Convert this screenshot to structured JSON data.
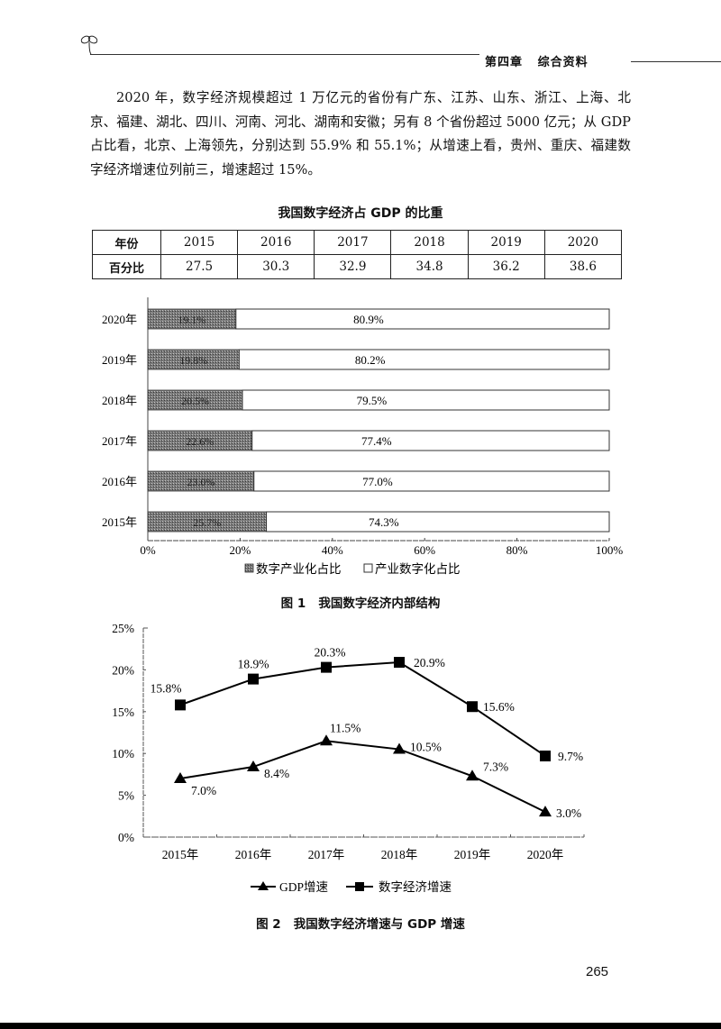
{
  "header": {
    "chapter": "第四章",
    "section": "综合资料",
    "title_full": "第四章   综合资料"
  },
  "paragraph": {
    "text": "2020 年，数字经济规模超过 1 万亿元的省份有广东、江苏、山东、浙江、上海、北京、福建、湖北、四川、河南、河北、湖南和安徽；另有 8 个省份超过 5000 亿元；从 GDP 占比看，北京、上海领先，分别达到 55.9% 和 55.1%；从增速上看，贵州、重庆、福建数字经济增速位列前三，增速超过 15%。"
  },
  "table": {
    "title": "我国数字经济占 GDP 的比重",
    "row_header_year": "年份",
    "row_header_pct": "百分比",
    "years": [
      "2015",
      "2016",
      "2017",
      "2018",
      "2019",
      "2020"
    ],
    "percentages": [
      "27.5",
      "30.3",
      "32.9",
      "34.8",
      "36.2",
      "38.6"
    ]
  },
  "figure1": {
    "caption": "图 1   我国数字经济内部结构",
    "legend": [
      "数字产业化占比",
      "产业数字化占比"
    ]
  },
  "figure2": {
    "caption": "图 2   我国数字经济增速与 GDP 增速",
    "legend": [
      "GDP增速",
      "数字经济增速"
    ]
  },
  "page_number": "265",
  "chart_data": [
    {
      "type": "bar",
      "orientation": "horizontal",
      "stacked": true,
      "title": "图 1 我国数字经济内部结构",
      "categories": [
        "2020年",
        "2019年",
        "2018年",
        "2017年",
        "2016年",
        "2015年"
      ],
      "series": [
        {
          "name": "数字产业化占比",
          "values": [
            19.1,
            19.8,
            20.5,
            22.6,
            23.0,
            25.7
          ],
          "labels": [
            "19.1%",
            "19.8%",
            "20.5%",
            "22.6%",
            "23.0%",
            "25.7%"
          ],
          "color": "#808080"
        },
        {
          "name": "产业数字化占比",
          "values": [
            80.9,
            80.2,
            79.5,
            77.4,
            77.0,
            74.3
          ],
          "labels": [
            "80.9%",
            "80.2%",
            "79.5%",
            "77.4%",
            "77.0%",
            "74.3%"
          ],
          "color": "#ffffff"
        }
      ],
      "xticks": [
        "0%",
        "20%",
        "40%",
        "60%",
        "80%",
        "100%"
      ],
      "xlim": [
        0,
        100
      ],
      "legend_position": "bottom",
      "grid": false
    },
    {
      "type": "line",
      "title": "图 2 我国数字经济增速与 GDP 增速",
      "categories": [
        "2015年",
        "2016年",
        "2017年",
        "2018年",
        "2019年",
        "2020年"
      ],
      "series": [
        {
          "name": "GDP增速",
          "marker": "triangle",
          "values": [
            7.0,
            8.4,
            11.5,
            10.5,
            7.3,
            3.0
          ],
          "labels": [
            "7.0%",
            "8.4%",
            "11.5%",
            "10.5%",
            "7.3%",
            "3.0%"
          ]
        },
        {
          "name": "数字经济增速",
          "marker": "square",
          "values": [
            15.8,
            18.9,
            20.3,
            20.9,
            15.6,
            9.7
          ],
          "labels": [
            "15.8%",
            "18.9%",
            "20.3%",
            "20.9%",
            "15.6%",
            "9.7%"
          ]
        }
      ],
      "yticks": [
        "0%",
        "5%",
        "10%",
        "15%",
        "20%",
        "25%"
      ],
      "ylim": [
        0,
        25
      ],
      "legend_position": "bottom",
      "grid": false
    }
  ]
}
